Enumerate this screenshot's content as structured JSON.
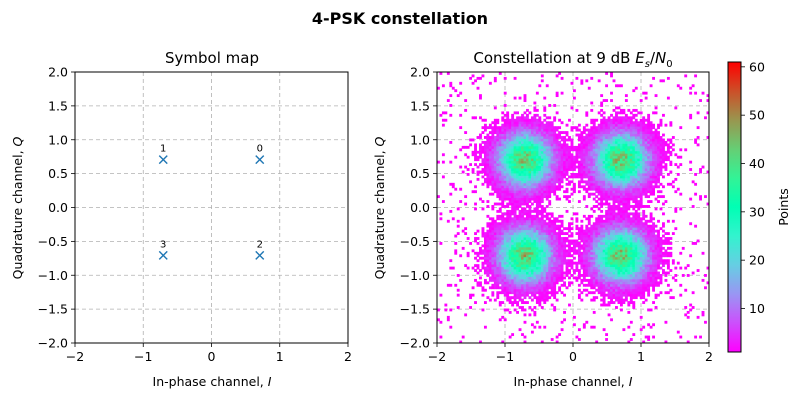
{
  "figure": {
    "title": "4-PSK constellation"
  },
  "chart_data": [
    {
      "type": "scatter",
      "title": "Symbol map",
      "xlabel": "In-phase channel, I",
      "ylabel": "Quadrature channel, Q",
      "xlim": [
        -2,
        2
      ],
      "ylim": [
        -2,
        2
      ],
      "xticks": [
        -2,
        -1,
        0,
        1,
        2
      ],
      "yticks": [
        -2.0,
        -1.5,
        -1.0,
        -0.5,
        0.0,
        0.5,
        1.0,
        1.5,
        2.0
      ],
      "grid": true,
      "marker_color": "#1f77b4",
      "points": [
        {
          "label": "0",
          "x": 0.707,
          "y": 0.707
        },
        {
          "label": "1",
          "x": -0.707,
          "y": 0.707
        },
        {
          "label": "2",
          "x": 0.707,
          "y": -0.707
        },
        {
          "label": "3",
          "x": -0.707,
          "y": -0.707
        }
      ]
    },
    {
      "type": "heatmap",
      "title": "Constellation at 9 dB Es/N0",
      "xlabel": "In-phase channel, I",
      "ylabel": "Quadrature channel, Q",
      "xlim": [
        -2,
        2
      ],
      "ylim": [
        -2,
        2
      ],
      "xticks": [
        -2,
        -1,
        0,
        1,
        2
      ],
      "yticks": [
        -2.0,
        -1.5,
        -1.0,
        -0.5,
        0.0,
        0.5,
        1.0,
        1.5,
        2.0
      ],
      "grid": true,
      "colormap": "rainbow",
      "clusters": [
        {
          "x": 0.707,
          "y": 0.707,
          "sigma": 0.25
        },
        {
          "x": -0.707,
          "y": 0.707,
          "sigma": 0.25
        },
        {
          "x": 0.707,
          "y": -0.707,
          "sigma": 0.25
        },
        {
          "x": -0.707,
          "y": -0.707,
          "sigma": 0.25
        }
      ],
      "peak_count": 61,
      "colorbar": {
        "label": "Points",
        "min": 1,
        "max": 61,
        "ticks": [
          10,
          20,
          30,
          40,
          50,
          60
        ]
      }
    }
  ]
}
